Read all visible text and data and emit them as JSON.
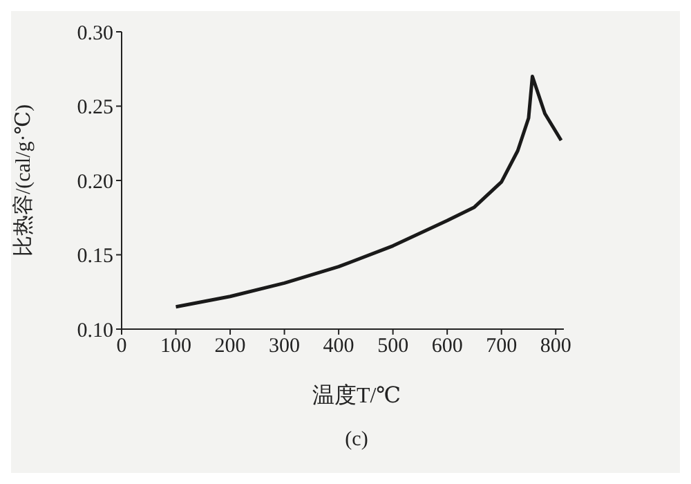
{
  "chart_data": {
    "type": "line",
    "xlabel": "温度T/℃",
    "ylabel": "比热容/(cal/g·℃)",
    "annotations": [
      "(c)"
    ],
    "x": [
      100,
      200,
      300,
      400,
      500,
      600,
      650,
      700,
      730,
      750,
      757,
      780,
      810
    ],
    "series": [
      {
        "color": "#1a1a1a",
        "values": [
          0.115,
          0.122,
          0.131,
          0.142,
          0.156,
          0.173,
          0.182,
          0.199,
          0.22,
          0.242,
          0.27,
          0.245,
          0.227
        ]
      }
    ],
    "xlim": [
      0,
      815
    ],
    "xticks": [
      0,
      100,
      200,
      300,
      400,
      500,
      600,
      700,
      800
    ],
    "ylim": [
      0.1,
      0.3
    ],
    "yticks": [
      {
        "value": 0.1,
        "label": "0.10"
      },
      0.15,
      {
        "value": 0.2,
        "label": "0.20"
      },
      0.25,
      {
        "value": 0.3,
        "label": "0.30"
      }
    ],
    "marker": "none",
    "line_style": "solid"
  }
}
